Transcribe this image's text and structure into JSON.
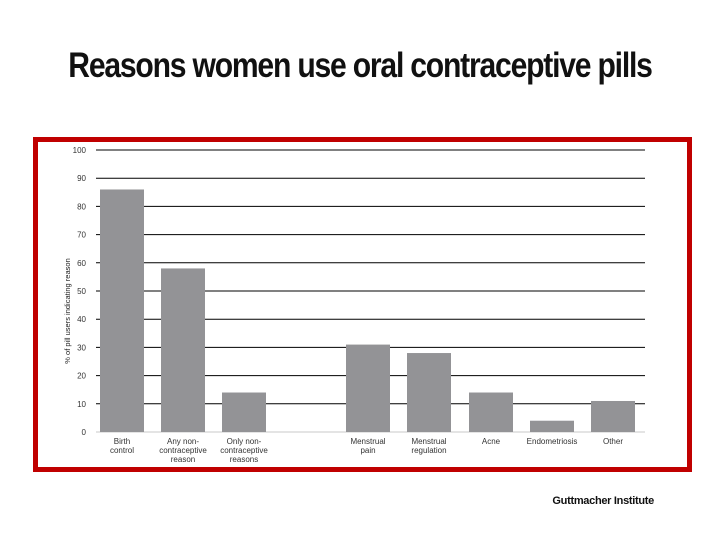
{
  "slide": {
    "title": "Reasons women use oral contraceptive pills",
    "credit": "Guttmacher Institute"
  },
  "colors": {
    "frame": "#c00000",
    "bar": "#939396",
    "gridline": "#000000"
  },
  "chart_data": {
    "type": "bar",
    "title": "Reasons women use oral contraceptive pills",
    "xlabel": "",
    "ylabel": "% of pill users indicating reason",
    "ylim": [
      0,
      100
    ],
    "yticks": [
      0,
      10,
      20,
      30,
      40,
      50,
      60,
      70,
      80,
      90,
      100
    ],
    "grid": true,
    "categories": [
      [
        "Birth",
        "control"
      ],
      [
        "Any non-",
        "contraceptive",
        "reason"
      ],
      [
        "Only non-",
        "contraceptive",
        "reasons"
      ],
      [
        "Menstrual",
        "pain"
      ],
      [
        "Menstrual",
        "regulation"
      ],
      [
        "Acne"
      ],
      [
        "Endometriosis"
      ],
      [
        "Other"
      ]
    ],
    "values": [
      86,
      58,
      14,
      31,
      28,
      14,
      4,
      11
    ]
  }
}
